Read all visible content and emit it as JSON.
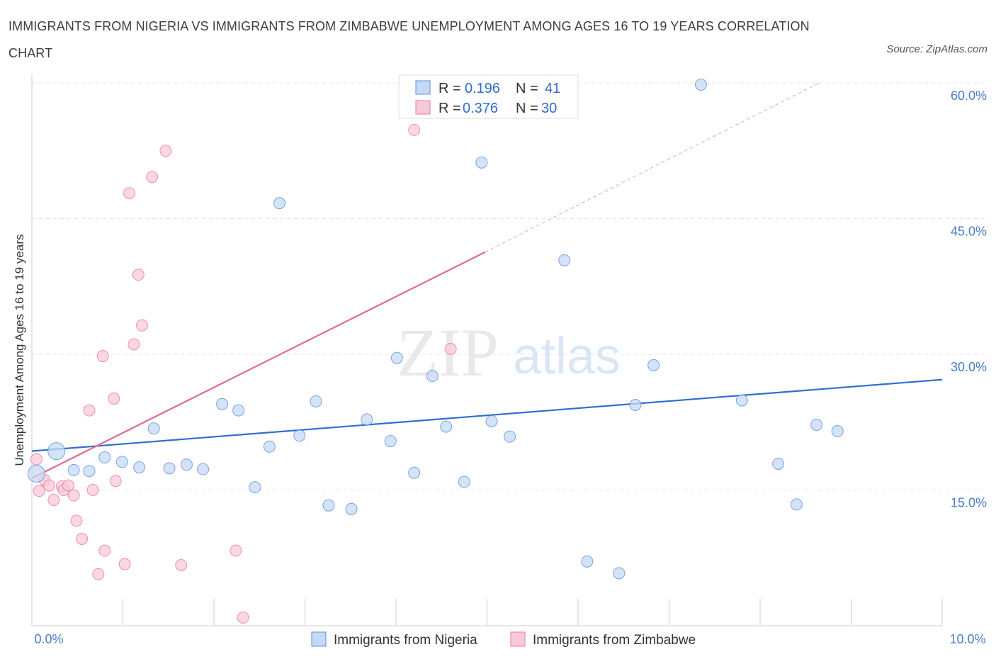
{
  "title": "IMMIGRANTS FROM NIGERIA VS IMMIGRANTS FROM ZIMBABWE UNEMPLOYMENT AMONG AGES 16 TO 19 YEARS CORRELATION CHART",
  "source": "Source: ZipAtlas.com",
  "watermark": {
    "zip": "ZIP",
    "atlas": "atlas"
  },
  "legend": {
    "rows": [
      {
        "r_label": "R =",
        "r_value": "0.196",
        "n_label": "N =",
        "n_value": "41"
      },
      {
        "r_label": "R =",
        "r_value": "0.376",
        "n_label": "N =",
        "n_value": "30"
      }
    ]
  },
  "bottom_legend": [
    "Immigrants from Nigeria",
    "Immigrants from Zimbabwe"
  ],
  "chart_data": {
    "type": "scatter",
    "title": "IMMIGRANTS FROM NIGERIA VS IMMIGRANTS FROM ZIMBABWE UNEMPLOYMENT AMONG AGES 16 TO 19 YEARS CORRELATION CHART",
    "xlabel": "",
    "ylabel": "Unemployment Among Ages 16 to 19 years",
    "xlim": [
      0,
      10
    ],
    "ylim": [
      0,
      60
    ],
    "x_tick_labels": [
      "0.0%",
      "10.0%"
    ],
    "y_tick_labels": [
      "15.0%",
      "30.0%",
      "45.0%",
      "60.0%"
    ],
    "y_ticks": [
      15,
      30,
      45,
      60
    ],
    "grid": true,
    "legend_position": "top-center",
    "colors": {
      "nigeria": "#5b8fdd",
      "nigeria_fill": "#c5d9f5",
      "zimbabwe": "#e8799b",
      "zimbabwe_fill": "#f8cad8"
    },
    "series": [
      {
        "name": "Immigrants from Nigeria",
        "r": 0.196,
        "n": 41,
        "trend": {
          "x": [
            0,
            10
          ],
          "y": [
            19.3,
            27.2
          ]
        },
        "points": [
          {
            "x": 0.05,
            "y": 16.8,
            "big": true
          },
          {
            "x": 0.27,
            "y": 19.3,
            "big": true
          },
          {
            "x": 0.46,
            "y": 17.2
          },
          {
            "x": 0.63,
            "y": 17.1
          },
          {
            "x": 0.8,
            "y": 18.6
          },
          {
            "x": 0.99,
            "y": 18.1
          },
          {
            "x": 1.18,
            "y": 17.5
          },
          {
            "x": 1.34,
            "y": 21.8
          },
          {
            "x": 1.51,
            "y": 17.4
          },
          {
            "x": 1.7,
            "y": 17.8
          },
          {
            "x": 1.88,
            "y": 17.3
          },
          {
            "x": 2.09,
            "y": 24.5
          },
          {
            "x": 2.27,
            "y": 23.8
          },
          {
            "x": 2.45,
            "y": 15.3
          },
          {
            "x": 2.61,
            "y": 19.8
          },
          {
            "x": 2.72,
            "y": 46.7
          },
          {
            "x": 2.94,
            "y": 21.0
          },
          {
            "x": 3.12,
            "y": 24.8
          },
          {
            "x": 3.26,
            "y": 13.3
          },
          {
            "x": 3.51,
            "y": 12.9
          },
          {
            "x": 3.68,
            "y": 22.8
          },
          {
            "x": 3.94,
            "y": 20.4
          },
          {
            "x": 4.01,
            "y": 29.6
          },
          {
            "x": 4.2,
            "y": 16.9
          },
          {
            "x": 4.4,
            "y": 27.6
          },
          {
            "x": 4.55,
            "y": 22.0
          },
          {
            "x": 4.75,
            "y": 15.9
          },
          {
            "x": 4.94,
            "y": 51.2
          },
          {
            "x": 5.05,
            "y": 22.6
          },
          {
            "x": 5.25,
            "y": 20.9
          },
          {
            "x": 5.85,
            "y": 40.4
          },
          {
            "x": 6.1,
            "y": 7.1
          },
          {
            "x": 6.45,
            "y": 5.8
          },
          {
            "x": 6.63,
            "y": 24.4
          },
          {
            "x": 6.83,
            "y": 28.8
          },
          {
            "x": 7.35,
            "y": 59.8
          },
          {
            "x": 7.8,
            "y": 24.9
          },
          {
            "x": 8.2,
            "y": 17.9
          },
          {
            "x": 8.4,
            "y": 13.4
          },
          {
            "x": 8.62,
            "y": 22.2
          },
          {
            "x": 8.85,
            "y": 21.5
          }
        ]
      },
      {
        "name": "Immigrants from Zimbabwe",
        "r": 0.376,
        "n": 30,
        "trend": {
          "x": [
            0,
            4.98
          ],
          "y": [
            16.3,
            41.3
          ]
        },
        "trend_dashed": {
          "x": [
            4.98,
            8.65
          ],
          "y": [
            41.3,
            60.0
          ]
        },
        "points": [
          {
            "x": 0.05,
            "y": 18.4
          },
          {
            "x": 0.08,
            "y": 14.9
          },
          {
            "x": 0.14,
            "y": 16.1
          },
          {
            "x": 0.19,
            "y": 15.5
          },
          {
            "x": 0.24,
            "y": 13.9
          },
          {
            "x": 0.33,
            "y": 15.4
          },
          {
            "x": 0.35,
            "y": 15.0
          },
          {
            "x": 0.4,
            "y": 15.5
          },
          {
            "x": 0.46,
            "y": 14.4
          },
          {
            "x": 0.49,
            "y": 11.6
          },
          {
            "x": 0.55,
            "y": 9.6
          },
          {
            "x": 0.63,
            "y": 23.8
          },
          {
            "x": 0.67,
            "y": 15.0
          },
          {
            "x": 0.73,
            "y": 5.7
          },
          {
            "x": 0.78,
            "y": 29.8
          },
          {
            "x": 0.8,
            "y": 8.3
          },
          {
            "x": 0.9,
            "y": 25.1
          },
          {
            "x": 0.92,
            "y": 16.0
          },
          {
            "x": 1.02,
            "y": 6.8
          },
          {
            "x": 1.07,
            "y": 47.8
          },
          {
            "x": 1.12,
            "y": 31.1
          },
          {
            "x": 1.17,
            "y": 38.8
          },
          {
            "x": 1.21,
            "y": 33.2
          },
          {
            "x": 1.32,
            "y": 49.6
          },
          {
            "x": 1.47,
            "y": 52.5
          },
          {
            "x": 1.64,
            "y": 6.7
          },
          {
            "x": 2.24,
            "y": 8.3
          },
          {
            "x": 2.32,
            "y": 0.9
          },
          {
            "x": 4.2,
            "y": 54.8
          },
          {
            "x": 4.6,
            "y": 30.6
          }
        ]
      }
    ]
  }
}
